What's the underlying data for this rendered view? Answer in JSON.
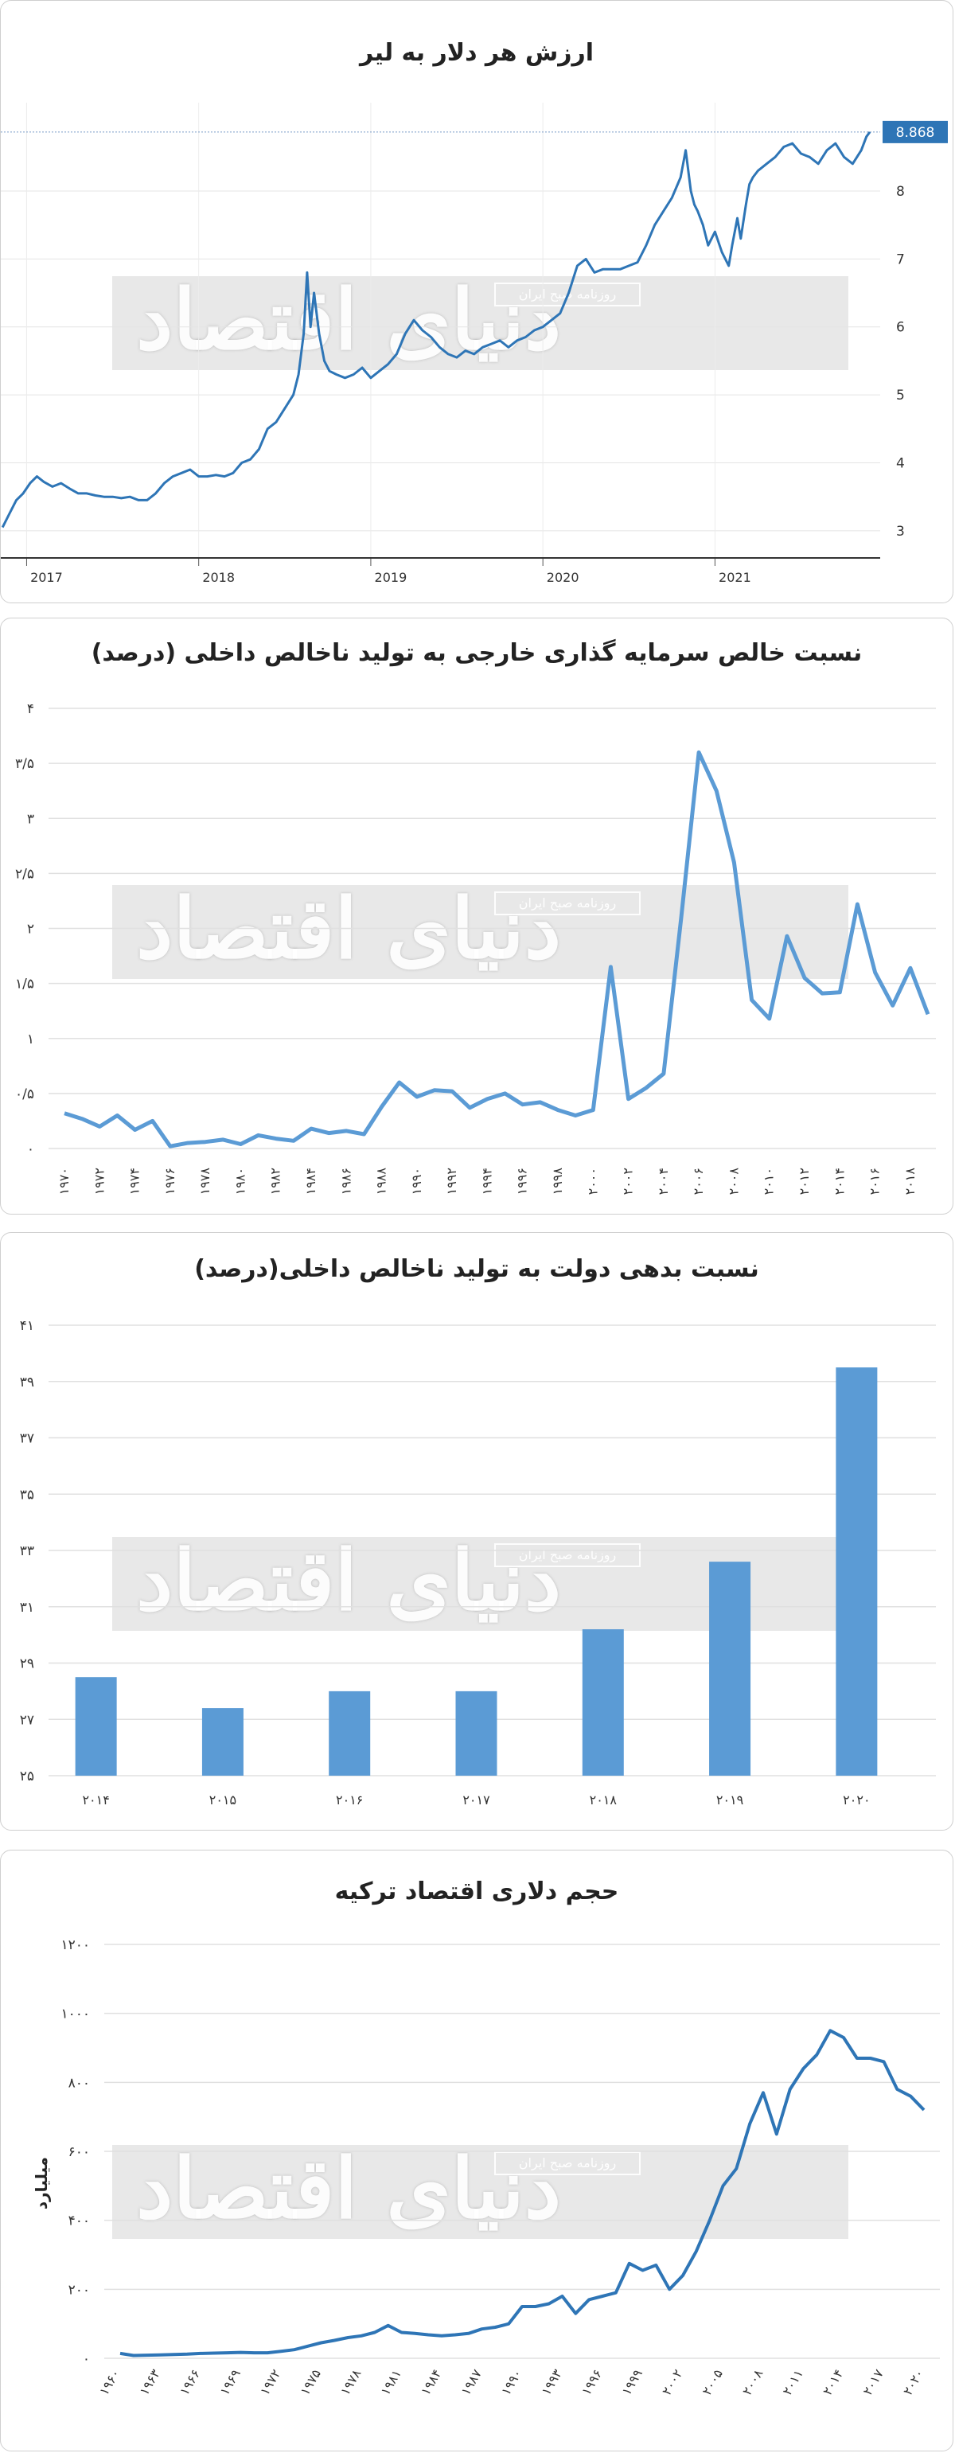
{
  "watermark": {
    "main": "دنیای اقتصاد",
    "sub": "روزنامه صبح ایران"
  },
  "chart_data": [
    {
      "id": "c1",
      "type": "line",
      "title": "ارزش هر دلار به لیر",
      "ylim": [
        2.6,
        9.3
      ],
      "yticks": [
        "3",
        "4",
        "5",
        "6",
        "7",
        "8"
      ],
      "ytick_values": [
        3,
        4,
        5,
        6,
        7,
        8
      ],
      "xlim": [
        2016.85,
        2021.96
      ],
      "xticks": [
        "2017",
        "2018",
        "2019",
        "2020",
        "2021"
      ],
      "xtick_values": [
        2017,
        2018,
        2019,
        2020,
        2021
      ],
      "last_value_label": "8.868",
      "last_value": 8.868,
      "grid": true,
      "color": "#2e75b6",
      "x": [
        2016.86,
        2016.9,
        2016.94,
        2016.98,
        2017.02,
        2017.06,
        2017.1,
        2017.15,
        2017.2,
        2017.25,
        2017.3,
        2017.35,
        2017.4,
        2017.45,
        2017.5,
        2017.55,
        2017.6,
        2017.65,
        2017.7,
        2017.75,
        2017.8,
        2017.85,
        2017.9,
        2017.95,
        2018.0,
        2018.05,
        2018.1,
        2018.15,
        2018.2,
        2018.25,
        2018.3,
        2018.35,
        2018.4,
        2018.45,
        2018.5,
        2018.55,
        2018.58,
        2018.61,
        2018.63,
        2018.65,
        2018.67,
        2018.7,
        2018.73,
        2018.76,
        2018.8,
        2018.85,
        2018.9,
        2018.95,
        2019.0,
        2019.05,
        2019.1,
        2019.15,
        2019.2,
        2019.25,
        2019.3,
        2019.35,
        2019.4,
        2019.45,
        2019.5,
        2019.55,
        2019.6,
        2019.65,
        2019.7,
        2019.75,
        2019.8,
        2019.85,
        2019.9,
        2019.95,
        2020.0,
        2020.05,
        2020.1,
        2020.15,
        2020.2,
        2020.25,
        2020.3,
        2020.35,
        2020.4,
        2020.45,
        2020.5,
        2020.55,
        2020.6,
        2020.65,
        2020.7,
        2020.75,
        2020.8,
        2020.83,
        2020.86,
        2020.88,
        2020.9,
        2020.93,
        2020.96,
        2021.0,
        2021.04,
        2021.08,
        2021.1,
        2021.13,
        2021.15,
        2021.18,
        2021.2,
        2021.22,
        2021.25,
        2021.3,
        2021.35,
        2021.4,
        2021.45,
        2021.5,
        2021.55,
        2021.6,
        2021.65,
        2021.7,
        2021.75,
        2021.8,
        2021.85,
        2021.88,
        2021.9
      ],
      "y": [
        3.05,
        3.25,
        3.45,
        3.55,
        3.7,
        3.8,
        3.72,
        3.65,
        3.7,
        3.62,
        3.55,
        3.55,
        3.52,
        3.5,
        3.5,
        3.48,
        3.5,
        3.45,
        3.45,
        3.55,
        3.7,
        3.8,
        3.85,
        3.9,
        3.8,
        3.8,
        3.82,
        3.8,
        3.85,
        4.0,
        4.05,
        4.2,
        4.5,
        4.6,
        4.8,
        5.0,
        5.3,
        5.9,
        6.8,
        6.0,
        6.5,
        5.9,
        5.5,
        5.35,
        5.3,
        5.25,
        5.3,
        5.4,
        5.25,
        5.35,
        5.45,
        5.6,
        5.9,
        6.1,
        5.95,
        5.85,
        5.7,
        5.6,
        5.55,
        5.65,
        5.6,
        5.7,
        5.75,
        5.8,
        5.7,
        5.8,
        5.85,
        5.95,
        6.0,
        6.1,
        6.2,
        6.5,
        6.9,
        7.0,
        6.8,
        6.85,
        6.85,
        6.85,
        6.9,
        6.95,
        7.2,
        7.5,
        7.7,
        7.9,
        8.2,
        8.6,
        8.0,
        7.8,
        7.7,
        7.5,
        7.2,
        7.4,
        7.1,
        6.9,
        7.2,
        7.6,
        7.3,
        7.8,
        8.1,
        8.2,
        8.3,
        8.4,
        8.5,
        8.65,
        8.7,
        8.55,
        8.5,
        8.4,
        8.6,
        8.7,
        8.5,
        8.4,
        8.6,
        8.8,
        8.868
      ]
    },
    {
      "id": "c2",
      "type": "line",
      "title": "نسبت خالص سرمایه گذاری خارجی به تولید ناخالص داخلی (درصد)",
      "ylim": [
        0,
        4
      ],
      "yticks": [
        "۰",
        "۰/۵",
        "۱",
        "۱/۵",
        "۲",
        "۲/۵",
        "۳",
        "۳/۵",
        "۴"
      ],
      "ytick_values": [
        0,
        0.5,
        1,
        1.5,
        2,
        2.5,
        3,
        3.5,
        4
      ],
      "xlim": [
        1970,
        2019
      ],
      "xticks": [
        "۱۹۷۰",
        "۱۹۷۲",
        "۱۹۷۴",
        "۱۹۷۶",
        "۱۹۷۸",
        "۱۹۸۰",
        "۱۹۸۲",
        "۱۹۸۴",
        "۱۹۸۶",
        "۱۹۸۸",
        "۱۹۹۰",
        "۱۹۹۲",
        "۱۹۹۴",
        "۱۹۹۶",
        "۱۹۹۸",
        "۲۰۰۰",
        "۲۰۰۲",
        "۲۰۰۴",
        "۲۰۰۶",
        "۲۰۰۸",
        "۲۰۱۰",
        "۲۰۱۲",
        "۲۰۱۴",
        "۲۰۱۶",
        "۲۰۱۸"
      ],
      "xtick_values": [
        1970,
        1972,
        1974,
        1976,
        1978,
        1980,
        1982,
        1984,
        1986,
        1988,
        1990,
        1992,
        1994,
        1996,
        1998,
        2000,
        2002,
        2004,
        2006,
        2008,
        2010,
        2012,
        2014,
        2016,
        2018
      ],
      "grid": true,
      "color": "#5b9bd5",
      "x": [
        1970,
        1971,
        1972,
        1973,
        1974,
        1975,
        1976,
        1977,
        1978,
        1979,
        1980,
        1981,
        1982,
        1983,
        1984,
        1985,
        1986,
        1987,
        1988,
        1989,
        1990,
        1991,
        1992,
        1993,
        1994,
        1995,
        1996,
        1997,
        1998,
        1999,
        2000,
        2001,
        2002,
        2003,
        2004,
        2005,
        2006,
        2007,
        2008,
        2009,
        2010,
        2011,
        2012,
        2013,
        2014,
        2015,
        2016,
        2017,
        2018,
        2019
      ],
      "y": [
        0.32,
        0.27,
        0.2,
        0.3,
        0.17,
        0.25,
        0.02,
        0.05,
        0.06,
        0.08,
        0.04,
        0.12,
        0.09,
        0.07,
        0.18,
        0.14,
        0.16,
        0.13,
        0.38,
        0.6,
        0.47,
        0.53,
        0.52,
        0.37,
        0.45,
        0.5,
        0.4,
        0.42,
        0.35,
        0.3,
        0.35,
        1.65,
        0.45,
        0.55,
        0.68,
        2.1,
        3.6,
        3.25,
        2.6,
        1.35,
        1.18,
        1.93,
        1.55,
        1.41,
        1.42,
        2.22,
        1.6,
        1.3,
        1.64,
        1.22
      ]
    },
    {
      "id": "c3",
      "type": "bar",
      "title": "نسبت بدهی دولت به تولید ناخالص داخلی(درصد)",
      "ylim": [
        25,
        41
      ],
      "yticks": [
        "۲۵",
        "۲۷",
        "۲۹",
        "۳۱",
        "۳۳",
        "۳۵",
        "۳۷",
        "۳۹",
        "۴۱"
      ],
      "ytick_values": [
        25,
        27,
        29,
        31,
        33,
        35,
        37,
        39,
        41
      ],
      "categories": [
        "۲۰۱۴",
        "۲۰۱۵",
        "۲۰۱۶",
        "۲۰۱۷",
        "۲۰۱۸",
        "۲۰۱۹",
        "۲۰۲۰"
      ],
      "values": [
        28.5,
        27.4,
        28.0,
        28.0,
        30.2,
        32.6,
        39.5
      ],
      "grid": true,
      "color": "#5b9bd5"
    },
    {
      "id": "c4",
      "type": "line",
      "title": "حجم دلاری اقتصاد ترکیه",
      "ylabel": "میلیارد",
      "ylim": [
        0,
        1200
      ],
      "yticks": [
        "۰",
        "۲۰۰",
        "۴۰۰",
        "۶۰۰",
        "۸۰۰",
        "۱۰۰۰",
        "۱۲۰۰"
      ],
      "ytick_values": [
        0,
        200,
        400,
        600,
        800,
        1000,
        1200
      ],
      "xlim": [
        1960,
        2020
      ],
      "xticks": [
        "۱۹۶۰",
        "۱۹۶۳",
        "۱۹۶۶",
        "۱۹۶۹",
        "۱۹۷۲",
        "۱۹۷۵",
        "۱۹۷۸",
        "۱۹۸۱",
        "۱۹۸۴",
        "۱۹۸۷",
        "۱۹۹۰",
        "۱۹۹۳",
        "۱۹۹۶",
        "۱۹۹۹",
        "۲۰۰۲",
        "۲۰۰۵",
        "۲۰۰۸",
        "۲۰۱۱",
        "۲۰۱۴",
        "۲۰۱۷",
        "۲۰۲۰"
      ],
      "xtick_values": [
        1960,
        1963,
        1966,
        1969,
        1972,
        1975,
        1978,
        1981,
        1984,
        1987,
        1990,
        1993,
        1996,
        1999,
        2002,
        2005,
        2008,
        2011,
        2014,
        2017,
        2020
      ],
      "grid": true,
      "color": "#2e75b6",
      "x": [
        1960,
        1961,
        1962,
        1963,
        1964,
        1965,
        1966,
        1967,
        1968,
        1969,
        1970,
        1971,
        1972,
        1973,
        1974,
        1975,
        1976,
        1977,
        1978,
        1979,
        1980,
        1981,
        1982,
        1983,
        1984,
        1985,
        1986,
        1987,
        1988,
        1989,
        1990,
        1991,
        1992,
        1993,
        1994,
        1995,
        1996,
        1997,
        1998,
        1999,
        2000,
        2001,
        2002,
        2003,
        2004,
        2005,
        2006,
        2007,
        2008,
        2009,
        2010,
        2011,
        2012,
        2013,
        2014,
        2015,
        2016,
        2017,
        2018,
        2019,
        2020
      ],
      "y": [
        14,
        8,
        9,
        10,
        11,
        12,
        14,
        15,
        16,
        17,
        16,
        16,
        20,
        25,
        35,
        45,
        52,
        60,
        65,
        75,
        95,
        75,
        72,
        68,
        65,
        68,
        72,
        85,
        90,
        100,
        150,
        150,
        158,
        180,
        130,
        170,
        180,
        190,
        275,
        255,
        270,
        200,
        240,
        310,
        400,
        500,
        550,
        680,
        770,
        650,
        780,
        840,
        880,
        950,
        930,
        870,
        870,
        860,
        780,
        760,
        720
      ]
    }
  ]
}
